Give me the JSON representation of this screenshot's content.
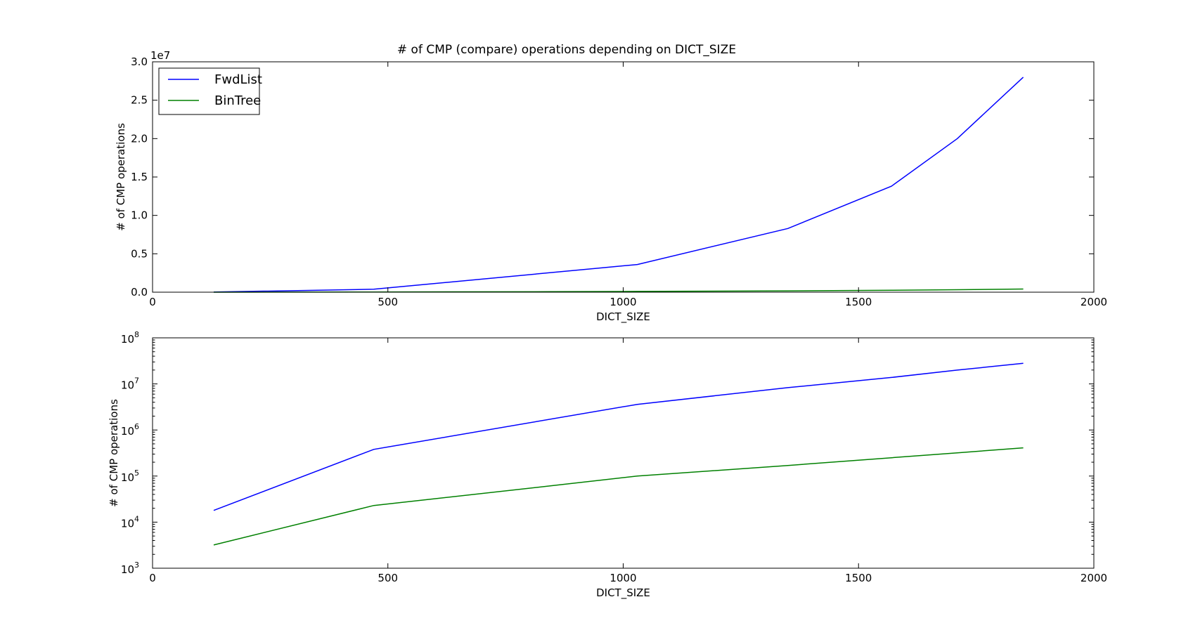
{
  "title": "# of CMP (compare) operations depending on DICT_SIZE",
  "colors": {
    "series": [
      "#0000ff",
      "#008000"
    ],
    "axes": "#000000",
    "background": "#ffffff"
  },
  "chart_data": [
    {
      "type": "line",
      "title": "# of CMP (compare) operations depending on DICT_SIZE",
      "xlabel": "DICT_SIZE",
      "ylabel": "# of CMP operations",
      "xlim": [
        0,
        2000
      ],
      "ylim": [
        0,
        30000000
      ],
      "yscale": "linear",
      "offset_text": "1e7",
      "x_ticks": [
        "0",
        "500",
        "1000",
        "1500",
        "2000"
      ],
      "y_ticks": [
        "0.0",
        "0.5",
        "1.0",
        "1.5",
        "2.0",
        "2.5",
        "3.0"
      ],
      "grid": false,
      "legend_position": "top-left",
      "series": [
        {
          "name": "FwdList",
          "color": "#0000ff",
          "x": [
            130,
            470,
            1030,
            1350,
            1570,
            1710,
            1850
          ],
          "y": [
            18000,
            380000,
            3600000,
            8300000,
            13800000,
            20000000,
            28000000
          ]
        },
        {
          "name": "BinTree",
          "color": "#008000",
          "x": [
            130,
            470,
            850,
            1030,
            1350,
            1570,
            1710,
            1850
          ],
          "y": [
            3200,
            23000,
            62000,
            100000,
            170000,
            250000,
            320000,
            410000
          ]
        }
      ]
    },
    {
      "type": "line",
      "title": "",
      "xlabel": "DICT_SIZE",
      "ylabel": "# of CMP operations",
      "xlim": [
        0,
        2000
      ],
      "ylim": [
        1000,
        100000000
      ],
      "yscale": "log",
      "x_ticks": [
        "0",
        "500",
        "1000",
        "1500",
        "2000"
      ],
      "y_ticks": [
        {
          "base": "10",
          "exp": "3"
        },
        {
          "base": "10",
          "exp": "4"
        },
        {
          "base": "10",
          "exp": "5"
        },
        {
          "base": "10",
          "exp": "6"
        },
        {
          "base": "10",
          "exp": "7"
        },
        {
          "base": "10",
          "exp": "8"
        }
      ],
      "grid": false,
      "series": [
        {
          "color": "#0000ff",
          "x": [
            130,
            470,
            1030,
            1350,
            1570,
            1710,
            1850
          ],
          "y": [
            18000,
            380000,
            3600000,
            8300000,
            13800000,
            20000000,
            28000000
          ]
        },
        {
          "color": "#008000",
          "x": [
            130,
            470,
            850,
            1030,
            1350,
            1570,
            1710,
            1850
          ],
          "y": [
            3200,
            23000,
            62000,
            100000,
            170000,
            250000,
            320000,
            410000
          ]
        }
      ]
    }
  ]
}
